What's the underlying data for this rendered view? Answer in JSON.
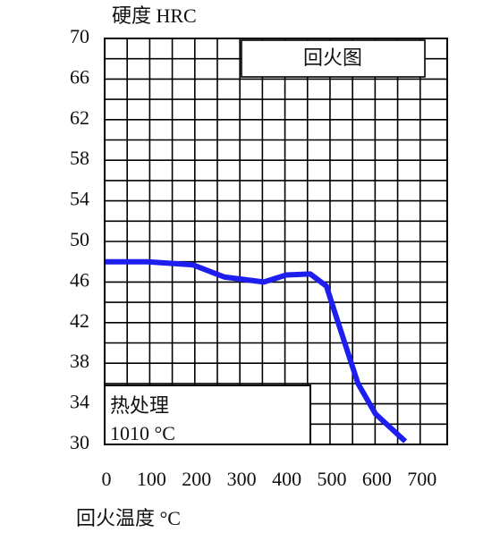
{
  "chart_data": {
    "type": "line",
    "y_label": "硬度 HRC",
    "x_label": "回火温度 °C",
    "legend_label": "回火图",
    "annotation_lines": [
      "热处理",
      "1010 °C"
    ],
    "series": [
      {
        "name": "回火图",
        "color": "#1e1ef0",
        "x": [
          0,
          95,
          195,
          265,
          353,
          403,
          456,
          492,
          518,
          562,
          601,
          667
        ],
        "values": [
          48,
          48,
          47.7,
          46.5,
          46,
          46.7,
          46.8,
          45.6,
          42,
          36,
          33,
          30.3
        ]
      }
    ],
    "xlim": [
      0,
      760
    ],
    "xticks": [
      0,
      100,
      200,
      300,
      400,
      500,
      600,
      700
    ],
    "ylim": [
      30,
      70
    ],
    "yticks": [
      30,
      34,
      38,
      42,
      46,
      50,
      54,
      58,
      62,
      66,
      70
    ],
    "grid": true
  }
}
